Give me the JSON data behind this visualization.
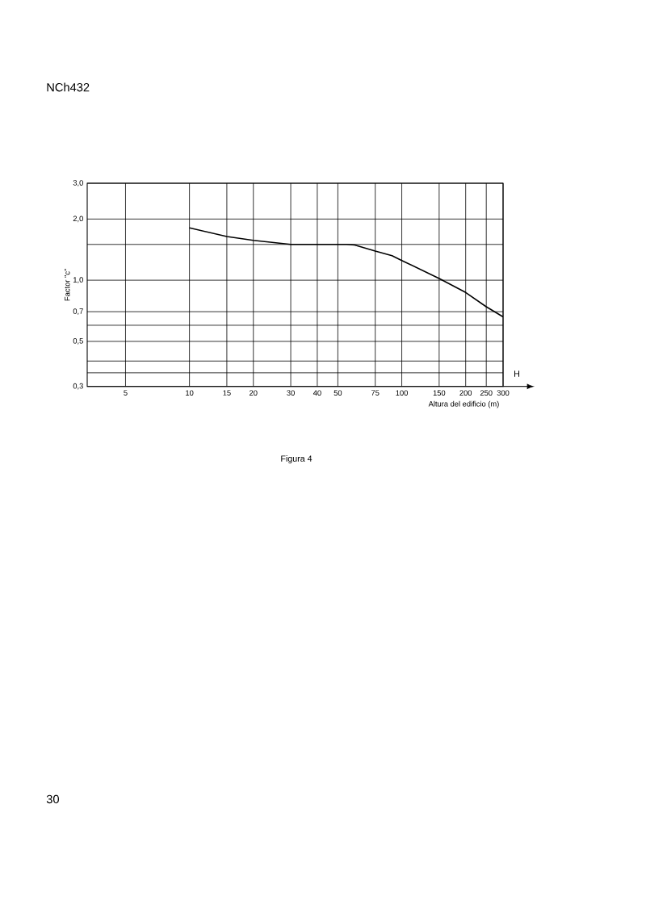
{
  "chart_data": {
    "type": "line",
    "xlabel": "Altura del edificio (m)",
    "ylabel": "Factor \"c\"",
    "annotations": [
      "NCh432",
      "H",
      "Figura 4",
      "30"
    ],
    "log": "xy",
    "grid": true,
    "marker": "none",
    "line_style": "solid",
    "xlim": [
      3.3,
      300
    ],
    "ylim": [
      0.3,
      3.0
    ],
    "xticks": [
      5,
      10,
      15,
      20,
      30,
      40,
      50,
      75,
      100,
      150,
      200,
      250,
      300
    ],
    "yticks": [
      {
        "value": 0.3,
        "label": "0,3"
      },
      {
        "value": 0.35,
        "label": null
      },
      {
        "value": 0.4,
        "label": null
      },
      {
        "value": 0.5,
        "label": "0,5"
      },
      {
        "value": 0.6,
        "label": null
      },
      {
        "value": 0.7,
        "label": "0,7"
      },
      {
        "value": 1.0,
        "label": "1,0"
      },
      {
        "value": 1.5,
        "label": null
      },
      {
        "value": 2.0,
        "label": "2,0"
      },
      {
        "value": 3.0,
        "label": "3,0"
      }
    ],
    "series": [
      {
        "color": "#000000",
        "x": [
          10,
          15,
          20,
          30,
          40,
          55,
          60,
          75,
          90,
          100,
          150,
          200,
          250,
          300
        ],
        "values": [
          1.81,
          1.64,
          1.57,
          1.5,
          1.5,
          1.5,
          1.49,
          1.39,
          1.32,
          1.25,
          1.02,
          0.87,
          0.74,
          0.66
        ]
      }
    ]
  }
}
